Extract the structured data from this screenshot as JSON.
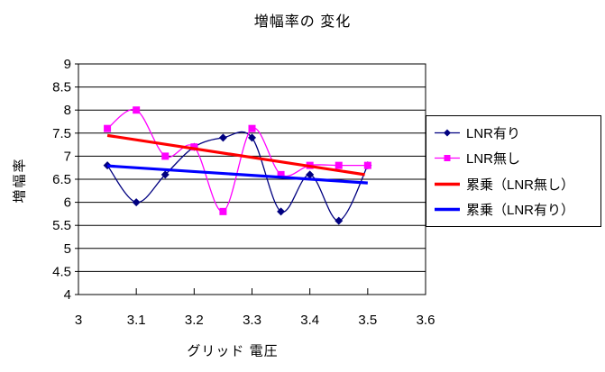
{
  "chart_data": {
    "type": "line",
    "title": "増幅率の 変化",
    "xlabel": "グリッド 電圧",
    "ylabel": "増幅率",
    "xlim": [
      3.0,
      3.6
    ],
    "ylim": [
      4.0,
      9.0
    ],
    "xticks": [
      "3",
      "3.1",
      "3.2",
      "3.3",
      "3.4",
      "3.5",
      "3.6"
    ],
    "yticks": [
      "4",
      "4.5",
      "5",
      "5.5",
      "6",
      "6.5",
      "7",
      "7.5",
      "8",
      "8.5",
      "9"
    ],
    "grid": "horizontal-major",
    "grid_color": "#000000",
    "plot_bg": "#FFFFFF",
    "legend_position": "right",
    "x": [
      3.05,
      3.1,
      3.15,
      3.2,
      3.25,
      3.3,
      3.35,
      3.4,
      3.45,
      3.5
    ],
    "series": [
      {
        "name": "LNR有り",
        "color": "#000080",
        "marker": "diamond",
        "smooth": true,
        "values": [
          6.8,
          6.0,
          6.6,
          7.2,
          7.4,
          7.4,
          5.8,
          6.6,
          5.6,
          6.8
        ]
      },
      {
        "name": "LNR無し",
        "color": "#FF00FF",
        "marker": "square",
        "smooth": true,
        "values": [
          7.6,
          8.0,
          7.0,
          7.2,
          5.8,
          7.6,
          6.6,
          6.8,
          6.8,
          6.8
        ]
      }
    ],
    "trendlines": [
      {
        "name": "累乗（LNR無し）",
        "color": "#FF0000",
        "type": "power",
        "x_range": [
          3.05,
          3.495
        ],
        "y_range": [
          7.45,
          6.6
        ]
      },
      {
        "name": "累乗（LNR有り）",
        "color": "#0000FF",
        "type": "power",
        "x_range": [
          3.05,
          3.5
        ],
        "y_range": [
          6.79,
          6.42
        ]
      }
    ]
  }
}
